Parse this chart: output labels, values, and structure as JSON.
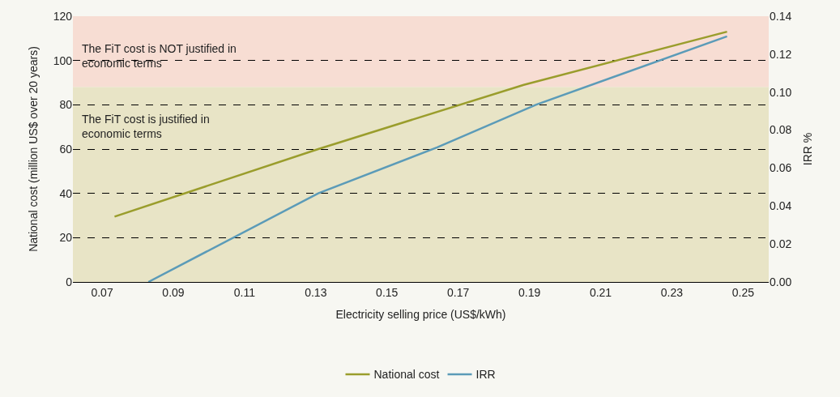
{
  "chart_data": {
    "type": "line",
    "xlabel": "Electricity selling price (US$/kWh)",
    "ylabel": "National cost (million US$ over 20 years)",
    "y2label": "IRR %",
    "series": [
      {
        "name": "National cost",
        "color": "#9a9d2c",
        "x": [
          0.0735,
          0.1307,
          0.1884,
          0.2455
        ],
        "values": [
          29.5,
          60,
          89,
          113
        ]
      },
      {
        "name": "IRR",
        "color": "#5b9bb8",
        "axis": "y2",
        "x": [
          0.083,
          0.1307,
          0.1641,
          0.1918,
          0.2455
        ],
        "values": [
          0,
          0.0467,
          0.0709,
          0.0933,
          0.1294
        ]
      }
    ],
    "xlim": [
      0.0618,
      0.2572
    ],
    "xticks": [
      0.07,
      0.09,
      0.11,
      0.13,
      0.15,
      0.17,
      0.19,
      0.21,
      0.23,
      0.25
    ],
    "ylim": [
      0,
      120
    ],
    "yticks": [
      0,
      20,
      40,
      60,
      80,
      100,
      120
    ],
    "y2lim": [
      0,
      0.14
    ],
    "y2ticks": [
      {
        "value": 0,
        "label": "0.00"
      },
      {
        "value": 0.02,
        "label": "0.02"
      },
      {
        "value": 0.04,
        "label": "0.04"
      },
      {
        "value": 0.06,
        "label": "0.06"
      },
      {
        "value": 0.08,
        "label": "0.08"
      },
      {
        "value": 0.1,
        "label": "0.10"
      },
      {
        "value": 0.12,
        "label": "0.12"
      },
      {
        "value": 0.14,
        "label": "0.14"
      }
    ],
    "bands": [
      {
        "axis": "y",
        "from": 88,
        "to": 120,
        "label": "The FiT cost is NOT justified in\neconomic terms",
        "color": "#f7ddd3"
      },
      {
        "axis": "y",
        "from": 0,
        "to": 88,
        "label": "The FiT cost is justified in\neconomic terms",
        "color": "#e8e4c6"
      }
    ],
    "grid": "y",
    "line_style": "solid",
    "marker": "none",
    "legend": "bottom"
  }
}
